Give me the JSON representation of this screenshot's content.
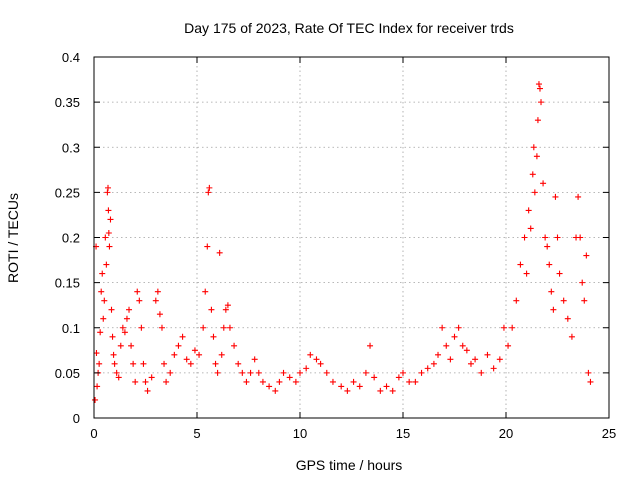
{
  "chart_data": {
    "type": "scatter",
    "title": "Day 175 of 2023, Rate Of TEC Index for receiver trds",
    "xlabel": "GPS time / hours",
    "ylabel": "ROTI / TECUs",
    "xlim": [
      0,
      25
    ],
    "ylim": [
      0,
      0.4
    ],
    "xticks": [
      0,
      5,
      10,
      15,
      20,
      25
    ],
    "xtick_labels": [
      "0",
      "5",
      "10",
      "15",
      "20",
      "25"
    ],
    "yticks": [
      0,
      0.05,
      0.1,
      0.15,
      0.2,
      0.25,
      0.3,
      0.35,
      0.4
    ],
    "ytick_labels": [
      "0",
      "0.05",
      "0.1",
      "0.15",
      "0.2",
      "0.25",
      "0.3",
      "0.35",
      "0.4"
    ],
    "grid": true,
    "marker": "+",
    "series": [
      {
        "color": "#ff0000",
        "points": [
          [
            0.05,
            0.02
          ],
          [
            0.1,
            0.19
          ],
          [
            0.12,
            0.072
          ],
          [
            0.15,
            0.035
          ],
          [
            0.2,
            0.05
          ],
          [
            0.25,
            0.06
          ],
          [
            0.3,
            0.095
          ],
          [
            0.35,
            0.14
          ],
          [
            0.4,
            0.16
          ],
          [
            0.45,
            0.11
          ],
          [
            0.5,
            0.13
          ],
          [
            0.55,
            0.2
          ],
          [
            0.6,
            0.17
          ],
          [
            0.65,
            0.25
          ],
          [
            0.68,
            0.255
          ],
          [
            0.7,
            0.23
          ],
          [
            0.72,
            0.205
          ],
          [
            0.75,
            0.19
          ],
          [
            0.8,
            0.22
          ],
          [
            0.85,
            0.12
          ],
          [
            0.9,
            0.09
          ],
          [
            0.95,
            0.07
          ],
          [
            1.0,
            0.06
          ],
          [
            1.1,
            0.05
          ],
          [
            1.2,
            0.045
          ],
          [
            1.3,
            0.08
          ],
          [
            1.4,
            0.1
          ],
          [
            1.5,
            0.095
          ],
          [
            1.6,
            0.11
          ],
          [
            1.7,
            0.12
          ],
          [
            1.8,
            0.08
          ],
          [
            1.9,
            0.06
          ],
          [
            2.0,
            0.04
          ],
          [
            2.1,
            0.14
          ],
          [
            2.2,
            0.13
          ],
          [
            2.3,
            0.1
          ],
          [
            2.4,
            0.06
          ],
          [
            2.5,
            0.04
          ],
          [
            2.6,
            0.03
          ],
          [
            2.8,
            0.045
          ],
          [
            3.0,
            0.13
          ],
          [
            3.1,
            0.14
          ],
          [
            3.2,
            0.115
          ],
          [
            3.3,
            0.1
          ],
          [
            3.4,
            0.06
          ],
          [
            3.5,
            0.04
          ],
          [
            3.7,
            0.05
          ],
          [
            3.9,
            0.07
          ],
          [
            4.1,
            0.08
          ],
          [
            4.3,
            0.09
          ],
          [
            4.5,
            0.065
          ],
          [
            4.7,
            0.06
          ],
          [
            4.9,
            0.075
          ],
          [
            5.1,
            0.07
          ],
          [
            5.3,
            0.1
          ],
          [
            5.4,
            0.14
          ],
          [
            5.5,
            0.19
          ],
          [
            5.55,
            0.25
          ],
          [
            5.6,
            0.255
          ],
          [
            5.7,
            0.12
          ],
          [
            5.8,
            0.09
          ],
          [
            5.9,
            0.06
          ],
          [
            6.0,
            0.05
          ],
          [
            6.1,
            0.183
          ],
          [
            6.2,
            0.07
          ],
          [
            6.3,
            0.1
          ],
          [
            6.4,
            0.12
          ],
          [
            6.5,
            0.125
          ],
          [
            6.6,
            0.1
          ],
          [
            6.8,
            0.08
          ],
          [
            7.0,
            0.06
          ],
          [
            7.2,
            0.05
          ],
          [
            7.4,
            0.04
          ],
          [
            7.6,
            0.05
          ],
          [
            7.8,
            0.065
          ],
          [
            8.0,
            0.05
          ],
          [
            8.2,
            0.04
          ],
          [
            8.5,
            0.035
          ],
          [
            8.8,
            0.03
          ],
          [
            9.0,
            0.04
          ],
          [
            9.2,
            0.05
          ],
          [
            9.5,
            0.045
          ],
          [
            9.8,
            0.04
          ],
          [
            10.0,
            0.05
          ],
          [
            10.3,
            0.055
          ],
          [
            10.5,
            0.07
          ],
          [
            10.8,
            0.065
          ],
          [
            11.0,
            0.06
          ],
          [
            11.3,
            0.05
          ],
          [
            11.6,
            0.04
          ],
          [
            12.0,
            0.035
          ],
          [
            12.3,
            0.03
          ],
          [
            12.6,
            0.04
          ],
          [
            12.9,
            0.035
          ],
          [
            13.2,
            0.05
          ],
          [
            13.4,
            0.08
          ],
          [
            13.6,
            0.045
          ],
          [
            13.9,
            0.03
          ],
          [
            14.2,
            0.035
          ],
          [
            14.5,
            0.03
          ],
          [
            14.8,
            0.045
          ],
          [
            15.0,
            0.05
          ],
          [
            15.3,
            0.04
          ],
          [
            15.6,
            0.04
          ],
          [
            15.9,
            0.05
          ],
          [
            16.2,
            0.055
          ],
          [
            16.5,
            0.06
          ],
          [
            16.7,
            0.07
          ],
          [
            16.9,
            0.1
          ],
          [
            17.1,
            0.08
          ],
          [
            17.3,
            0.065
          ],
          [
            17.5,
            0.09
          ],
          [
            17.7,
            0.1
          ],
          [
            17.9,
            0.08
          ],
          [
            18.1,
            0.075
          ],
          [
            18.3,
            0.06
          ],
          [
            18.5,
            0.065
          ],
          [
            18.8,
            0.05
          ],
          [
            19.1,
            0.07
          ],
          [
            19.4,
            0.055
          ],
          [
            19.7,
            0.065
          ],
          [
            19.9,
            0.1
          ],
          [
            20.1,
            0.08
          ],
          [
            20.3,
            0.1
          ],
          [
            20.5,
            0.13
          ],
          [
            20.7,
            0.17
          ],
          [
            20.9,
            0.2
          ],
          [
            21.0,
            0.16
          ],
          [
            21.1,
            0.23
          ],
          [
            21.2,
            0.21
          ],
          [
            21.3,
            0.27
          ],
          [
            21.35,
            0.3
          ],
          [
            21.4,
            0.25
          ],
          [
            21.5,
            0.29
          ],
          [
            21.55,
            0.33
          ],
          [
            21.6,
            0.37
          ],
          [
            21.65,
            0.365
          ],
          [
            21.7,
            0.35
          ],
          [
            21.8,
            0.26
          ],
          [
            21.9,
            0.2
          ],
          [
            22.0,
            0.19
          ],
          [
            22.1,
            0.17
          ],
          [
            22.2,
            0.14
          ],
          [
            22.3,
            0.12
          ],
          [
            22.4,
            0.245
          ],
          [
            22.5,
            0.2
          ],
          [
            22.6,
            0.16
          ],
          [
            22.8,
            0.13
          ],
          [
            23.0,
            0.11
          ],
          [
            23.2,
            0.09
          ],
          [
            23.4,
            0.2
          ],
          [
            23.5,
            0.245
          ],
          [
            23.6,
            0.2
          ],
          [
            23.7,
            0.15
          ],
          [
            23.8,
            0.13
          ],
          [
            23.9,
            0.18
          ],
          [
            24.0,
            0.05
          ],
          [
            24.1,
            0.04
          ]
        ]
      }
    ]
  }
}
